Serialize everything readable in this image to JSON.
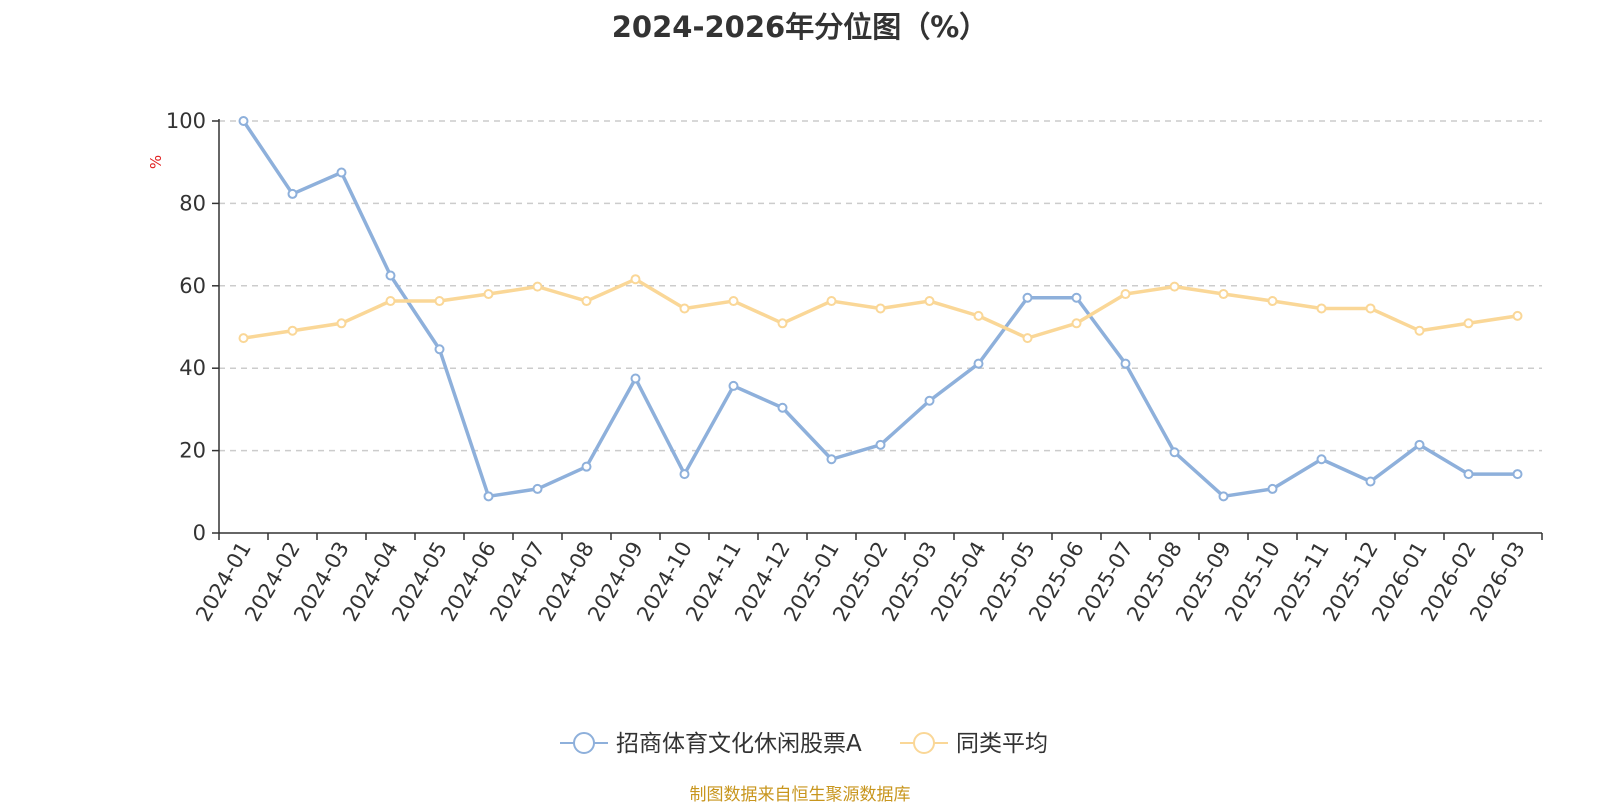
{
  "chart_data": {
    "type": "line",
    "title": "2024-2026年分位图（%）",
    "ylabel": "%",
    "xlabel": "",
    "ylim": [
      0,
      100
    ],
    "yticks": [
      0,
      20,
      40,
      60,
      80,
      100
    ],
    "grid": true,
    "legend_position": "bottom",
    "categories": [
      "2024-01",
      "2024-02",
      "2024-03",
      "2024-04",
      "2024-05",
      "2024-06",
      "2024-07",
      "2024-08",
      "2024-09",
      "2024-10",
      "2024-11",
      "2024-12",
      "2025-01",
      "2025-02",
      "2025-03",
      "2025-04",
      "2025-05",
      "2025-06",
      "2025-07",
      "2025-08",
      "2025-09",
      "2025-10",
      "2025-11",
      "2025-12",
      "2026-01",
      "2026-02",
      "2026-03"
    ],
    "series": [
      {
        "name": "招商体育文化休闲股票A",
        "color": "#8eb0db",
        "values": [
          100,
          82.3,
          87.5,
          62.5,
          44.6,
          8.9,
          10.7,
          16.1,
          37.5,
          14.3,
          35.7,
          30.4,
          17.9,
          21.4,
          32.1,
          41.1,
          57.1,
          57.1,
          41.1,
          19.6,
          8.9,
          10.7,
          17.9,
          12.5,
          21.4,
          14.3,
          14.3
        ]
      },
      {
        "name": "同类平均",
        "color": "#fad797",
        "values": [
          47.3,
          49.1,
          50.9,
          56.3,
          56.3,
          58.0,
          59.8,
          56.3,
          61.6,
          54.5,
          56.3,
          50.9,
          56.3,
          54.5,
          56.3,
          52.7,
          47.3,
          50.9,
          58.0,
          59.8,
          58.0,
          56.3,
          54.5,
          54.5,
          49.1,
          50.9,
          52.7
        ]
      }
    ]
  },
  "footer": {
    "source": "制图数据来自恒生聚源数据库"
  },
  "colors": {
    "axis": "#333333",
    "grid": "#cccccc",
    "ylabel": "#e02020",
    "source": "#c8961e"
  }
}
